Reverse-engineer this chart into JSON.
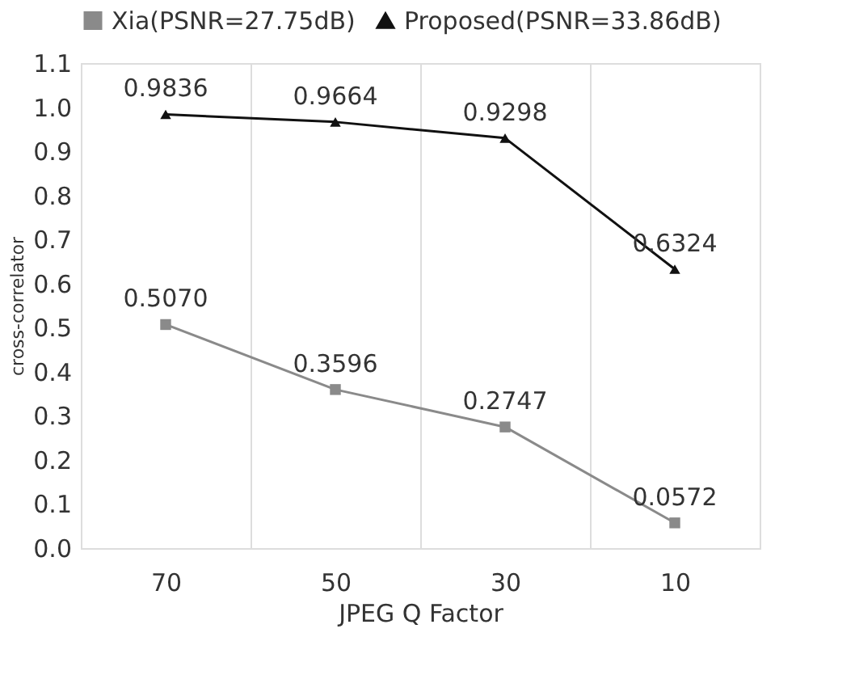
{
  "chart_data": {
    "type": "line",
    "xlabel": "JPEG Q Factor",
    "ylabel": "cross-correlator",
    "categories": [
      "70",
      "50",
      "30",
      "10"
    ],
    "series": [
      {
        "name": "Xia(PSNR=27.75dB)",
        "color": "#8a8a8a",
        "marker": "square",
        "values": [
          0.507,
          0.3596,
          0.2747,
          0.0572
        ],
        "value_labels": [
          "0.5070",
          "0.3596",
          "0.2747",
          "0.0572"
        ]
      },
      {
        "name": "Proposed(PSNR=33.86dB)",
        "color": "#111111",
        "marker": "triangle",
        "values": [
          0.9836,
          0.9664,
          0.9298,
          0.6324
        ],
        "value_labels": [
          "0.9836",
          "0.9664",
          "0.9298",
          "0.6324"
        ]
      }
    ],
    "ylim": [
      0,
      1.1
    ],
    "yticks": [
      {
        "value": 0,
        "label": "0.0"
      },
      0.1,
      0.2,
      0.3,
      0.4,
      0.5,
      0.6,
      0.7,
      0.8,
      0.9,
      {
        "value": 1.0,
        "label": "1.0"
      },
      1.1
    ],
    "grid": "x",
    "legend": "top",
    "line_style": "solid"
  }
}
